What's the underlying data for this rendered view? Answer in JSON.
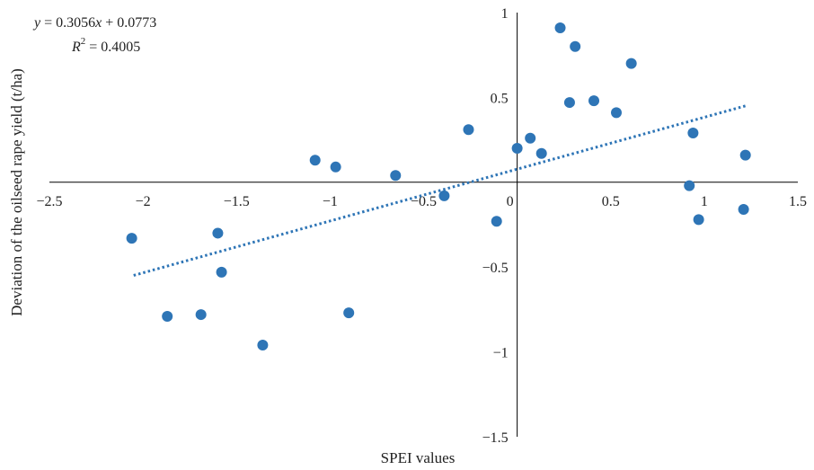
{
  "chart_data": {
    "type": "scatter",
    "xlabel": "SPEI values",
    "ylabel": "Deviation of the oilseed rape yield (t/ha)",
    "xlim": [
      -2.5,
      1.5
    ],
    "ylim": [
      -1.5,
      1.0
    ],
    "x_ticks": [
      "−2.5",
      "−2",
      "−1.5",
      "−1",
      "−0.5",
      "0",
      "0.5",
      "1",
      "1.5"
    ],
    "y_ticks": [
      "1",
      "0.5",
      "−0.5",
      "−1",
      "−1.5"
    ],
    "equation": {
      "line1_y": "y",
      "line1_rest": " = 0.3056",
      "line1_x": "x",
      "line1_tail": " + 0.0773",
      "line2_r": "R",
      "line2_sup": "2",
      "line2_rest": " = 0.4005"
    },
    "trendline": {
      "slope": 0.3056,
      "intercept": 0.0773,
      "x_range": [
        -2.05,
        1.22
      ],
      "style": "dotted"
    },
    "marker_color": "#2e75b6",
    "points": [
      {
        "x": -2.06,
        "y": -0.33
      },
      {
        "x": -1.87,
        "y": -0.79
      },
      {
        "x": -1.69,
        "y": -0.78
      },
      {
        "x": -1.6,
        "y": -0.3
      },
      {
        "x": -1.58,
        "y": -0.53
      },
      {
        "x": -1.36,
        "y": -0.96
      },
      {
        "x": -1.08,
        "y": 0.13
      },
      {
        "x": -0.97,
        "y": 0.09
      },
      {
        "x": -0.9,
        "y": -0.77
      },
      {
        "x": -0.65,
        "y": 0.04
      },
      {
        "x": -0.39,
        "y": -0.08
      },
      {
        "x": -0.26,
        "y": 0.31
      },
      {
        "x": -0.11,
        "y": -0.23
      },
      {
        "x": 0.0,
        "y": 0.2
      },
      {
        "x": 0.07,
        "y": 0.26
      },
      {
        "x": 0.13,
        "y": 0.17
      },
      {
        "x": 0.23,
        "y": 0.91
      },
      {
        "x": 0.28,
        "y": 0.47
      },
      {
        "x": 0.31,
        "y": 0.8
      },
      {
        "x": 0.41,
        "y": 0.48
      },
      {
        "x": 0.53,
        "y": 0.41
      },
      {
        "x": 0.61,
        "y": 0.7
      },
      {
        "x": 0.92,
        "y": -0.02
      },
      {
        "x": 0.94,
        "y": 0.29
      },
      {
        "x": 0.97,
        "y": -0.22
      },
      {
        "x": 1.21,
        "y": -0.16
      },
      {
        "x": 1.22,
        "y": 0.16
      }
    ]
  }
}
